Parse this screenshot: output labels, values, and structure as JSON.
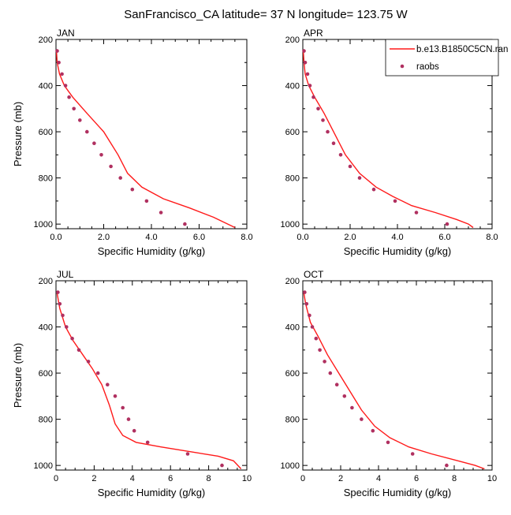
{
  "figure": {
    "title": "SanFrancisco_CA  latitude= 37 N longitude= 123.75 W"
  },
  "legend": {
    "model_label": "b.e13.B1850C5CN.ran",
    "obs_label": "raobs"
  },
  "colors": {
    "model": "#ff1a1a",
    "obs": "#b03060",
    "axis": "#000000"
  },
  "chart_data": [
    {
      "type": "line",
      "panel_label": "JAN",
      "xlabel": "Specific Humidity (g/kg)",
      "ylabel": "Pressure (mb)",
      "xlim": [
        0,
        8
      ],
      "ylim": [
        1020,
        200
      ],
      "x_ticks": [
        "0.0",
        "2.0",
        "4.0",
        "6.0",
        "8.0"
      ],
      "y_ticks": [
        "200",
        "400",
        "600",
        "800",
        "1000"
      ],
      "legend_shown": false,
      "series": [
        {
          "name": "b.e13.B1850C5CN.ran",
          "kind": "line",
          "x": [
            0.02,
            0.05,
            0.15,
            0.35,
            0.7,
            1.3,
            2.0,
            2.6,
            3.0,
            3.6,
            4.5,
            5.6,
            6.6,
            7.2,
            7.5
          ],
          "y": [
            250,
            300,
            350,
            400,
            450,
            520,
            600,
            700,
            780,
            840,
            890,
            930,
            970,
            1000,
            1015
          ]
        },
        {
          "name": "raobs",
          "kind": "scatter",
          "x": [
            0.05,
            0.12,
            0.25,
            0.4,
            0.55,
            0.75,
            1.0,
            1.3,
            1.6,
            1.9,
            2.3,
            2.7,
            3.2,
            3.8,
            4.4,
            5.4
          ],
          "y": [
            250,
            300,
            350,
            400,
            450,
            500,
            550,
            600,
            650,
            700,
            750,
            800,
            850,
            900,
            950,
            1000
          ]
        }
      ]
    },
    {
      "type": "line",
      "panel_label": "APR",
      "xlabel": "Specific Humidity (g/kg)",
      "ylabel": "",
      "xlim": [
        0,
        8
      ],
      "ylim": [
        1020,
        200
      ],
      "x_ticks": [
        "0.0",
        "2.0",
        "4.0",
        "6.0",
        "8.0"
      ],
      "y_ticks": [
        "200",
        "400",
        "600",
        "800",
        "1000"
      ],
      "legend_shown": true,
      "series": [
        {
          "name": "b.e13.B1850C5CN.ran",
          "kind": "line",
          "x": [
            0.02,
            0.05,
            0.1,
            0.25,
            0.5,
            0.9,
            1.3,
            1.8,
            2.4,
            3.1,
            3.8,
            4.6,
            5.6,
            6.5,
            7.0,
            7.2
          ],
          "y": [
            250,
            300,
            350,
            400,
            450,
            520,
            600,
            700,
            780,
            840,
            880,
            920,
            950,
            980,
            1000,
            1015
          ]
        },
        {
          "name": "raobs",
          "kind": "scatter",
          "x": [
            0.05,
            0.1,
            0.2,
            0.3,
            0.45,
            0.65,
            0.85,
            1.05,
            1.3,
            1.6,
            2.0,
            2.4,
            3.0,
            3.9,
            4.8,
            6.1
          ],
          "y": [
            250,
            300,
            350,
            400,
            450,
            500,
            550,
            600,
            650,
            700,
            750,
            800,
            850,
            900,
            950,
            1000
          ]
        }
      ]
    },
    {
      "type": "line",
      "panel_label": "JUL",
      "xlabel": "Specific Humidity (g/kg)",
      "ylabel": "Pressure (mb)",
      "xlim": [
        0,
        10
      ],
      "ylim": [
        1020,
        200
      ],
      "x_ticks": [
        "0",
        "2",
        "4",
        "6",
        "8",
        "10"
      ],
      "y_ticks": [
        "200",
        "400",
        "600",
        "800",
        "1000"
      ],
      "legend_shown": false,
      "series": [
        {
          "name": "b.e13.B1850C5CN.ran",
          "kind": "line",
          "x": [
            0.05,
            0.2,
            0.5,
            0.9,
            1.4,
            1.9,
            2.4,
            2.8,
            3.1,
            3.5,
            4.2,
            5.5,
            7.0,
            8.5,
            9.3,
            9.7
          ],
          "y": [
            250,
            320,
            400,
            460,
            520,
            580,
            650,
            740,
            820,
            870,
            900,
            920,
            940,
            960,
            980,
            1015
          ]
        },
        {
          "name": "raobs",
          "kind": "scatter",
          "x": [
            0.1,
            0.2,
            0.35,
            0.55,
            0.85,
            1.2,
            1.7,
            2.2,
            2.7,
            3.1,
            3.5,
            3.8,
            4.1,
            4.8,
            6.9,
            8.7
          ],
          "y": [
            250,
            300,
            350,
            400,
            450,
            500,
            550,
            600,
            650,
            700,
            750,
            800,
            850,
            900,
            950,
            1000
          ]
        }
      ]
    },
    {
      "type": "line",
      "panel_label": "OCT",
      "xlabel": "Specific Humidity (g/kg)",
      "ylabel": "",
      "xlim": [
        0,
        10
      ],
      "ylim": [
        1020,
        200
      ],
      "x_ticks": [
        "0",
        "2",
        "4",
        "6",
        "8",
        "10"
      ],
      "y_ticks": [
        "200",
        "400",
        "600",
        "800",
        "1000"
      ],
      "legend_shown": false,
      "series": [
        {
          "name": "b.e13.B1850C5CN.ran",
          "kind": "line",
          "x": [
            0.05,
            0.15,
            0.4,
            0.8,
            1.3,
            1.9,
            2.5,
            3.1,
            3.8,
            4.6,
            5.6,
            6.8,
            8.2,
            9.1,
            9.6
          ],
          "y": [
            250,
            300,
            380,
            440,
            520,
            600,
            680,
            760,
            830,
            880,
            920,
            950,
            980,
            1000,
            1015
          ]
        },
        {
          "name": "raobs",
          "kind": "scatter",
          "x": [
            0.1,
            0.2,
            0.35,
            0.5,
            0.7,
            0.9,
            1.15,
            1.45,
            1.8,
            2.2,
            2.6,
            3.1,
            3.7,
            4.5,
            5.8,
            7.6
          ],
          "y": [
            250,
            300,
            350,
            400,
            450,
            500,
            550,
            600,
            650,
            700,
            750,
            800,
            850,
            900,
            950,
            1000
          ]
        }
      ]
    }
  ]
}
